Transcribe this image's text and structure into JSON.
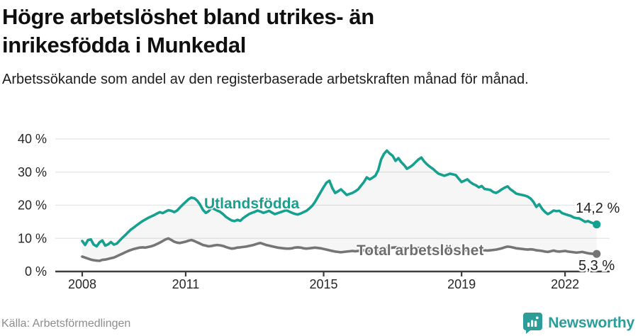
{
  "header": {
    "title": "Högre arbetslöshet bland utrikes- än inrikesfödda i Munkedal",
    "subtitle": "Arbetssökande som andel av den registerbaserade arbetskraften månad för månad."
  },
  "footer": {
    "source": "Källa: Arbetsförmedlingen",
    "brand": "Newsworthy"
  },
  "colors": {
    "accent": "#16a08f",
    "gray_series": "#757575",
    "gray_label": "#6e6e6e",
    "grid": "#e4e4e4",
    "axis": "#3d3d3d",
    "value_label": "#1f1f1f",
    "tick_text": "#262626",
    "fill_between": "rgba(90,90,90,0.055)",
    "brand_teal": "#2c9d98"
  },
  "chart_data": {
    "type": "line",
    "title": "Högre arbetslöshet bland utrikes- än inrikesfödda i Munkedal",
    "subtitle": "Arbetssökande som andel av den registerbaserade arbetskraften månad för månad.",
    "x_unit": "month",
    "x_range": [
      "2008-01",
      "2022-12"
    ],
    "xticks": [
      "2008",
      "2011",
      "2015",
      "2019",
      "2022"
    ],
    "xtick_years": [
      2008,
      2011,
      2015,
      2019,
      2022
    ],
    "yticks": [
      "0 %",
      "10 %",
      "20 %",
      "30 %",
      "40 %"
    ],
    "ytick_values": [
      0,
      10,
      20,
      30,
      40
    ],
    "ylim": [
      0,
      40
    ],
    "grid": true,
    "legend": "inline",
    "series": [
      {
        "name": "Utlandsfödda",
        "end_label": "14,2 %",
        "end_value": 14.2,
        "values": [
          9.2,
          8.0,
          9.5,
          9.7,
          8.1,
          7.6,
          8.8,
          9.4,
          7.8,
          8.2,
          8.9,
          8.1,
          8.4,
          9.3,
          10.2,
          11.0,
          11.9,
          12.7,
          13.3,
          14.0,
          14.6,
          15.2,
          15.7,
          16.2,
          16.6,
          17.0,
          17.5,
          17.9,
          17.6,
          18.1,
          18.5,
          18.3,
          17.9,
          18.4,
          19.3,
          20.2,
          21.0,
          21.8,
          22.3,
          22.1,
          21.4,
          20.2,
          18.6,
          17.7,
          18.2,
          19.3,
          18.8,
          18.4,
          18.0,
          17.3,
          16.5,
          15.9,
          15.4,
          15.2,
          15.6,
          15.3,
          16.1,
          16.7,
          17.3,
          17.7,
          18.0,
          18.4,
          18.1,
          17.7,
          18.0,
          18.3,
          17.8,
          17.3,
          17.6,
          17.9,
          18.2,
          18.5,
          18.1,
          17.7,
          17.4,
          17.2,
          17.5,
          17.9,
          18.3,
          19.0,
          19.8,
          21.0,
          22.5,
          24.0,
          25.5,
          26.8,
          27.4,
          25.2,
          23.7,
          24.2,
          24.8,
          24.0,
          23.1,
          23.4,
          23.7,
          24.2,
          24.8,
          25.9,
          27.0,
          28.4,
          27.8,
          28.3,
          28.9,
          30.6,
          33.8,
          35.5,
          36.5,
          35.6,
          34.9,
          33.4,
          34.2,
          33.0,
          32.1,
          31.0,
          31.5,
          32.1,
          33.0,
          33.8,
          34.4,
          33.2,
          32.3,
          31.6,
          31.0,
          30.2,
          29.5,
          29.2,
          28.9,
          29.2,
          29.5,
          29.3,
          29.1,
          28.0,
          27.0,
          27.4,
          27.8,
          27.0,
          26.4,
          26.0,
          25.4,
          25.8,
          24.9,
          24.8,
          24.6,
          24.0,
          23.7,
          24.2,
          24.8,
          25.3,
          25.7,
          24.8,
          24.2,
          23.5,
          23.3,
          23.1,
          22.9,
          22.6,
          22.0,
          21.0,
          19.5,
          20.3,
          18.9,
          18.0,
          17.3,
          17.8,
          18.4,
          18.2,
          18.3,
          17.6,
          17.3,
          17.0,
          16.8,
          16.3,
          16.1,
          16.0,
          15.5,
          15.0,
          15.2,
          14.8,
          14.5,
          14.2
        ]
      },
      {
        "name": "Total arbetslöshet",
        "end_label": "5,3 %",
        "end_value": 5.3,
        "values": [
          4.5,
          4.2,
          3.9,
          3.6,
          3.4,
          3.3,
          3.2,
          3.5,
          3.6,
          3.8,
          4.0,
          4.2,
          4.6,
          5.0,
          5.4,
          5.8,
          6.2,
          6.5,
          6.8,
          7.0,
          7.2,
          7.3,
          7.2,
          7.4,
          7.6,
          7.9,
          8.3,
          8.7,
          9.2,
          9.7,
          10.0,
          9.5,
          9.0,
          8.7,
          8.6,
          8.8,
          9.0,
          9.3,
          9.5,
          9.2,
          8.8,
          8.4,
          8.0,
          7.8,
          7.6,
          7.7,
          7.9,
          8.0,
          7.9,
          7.7,
          7.4,
          7.1,
          6.9,
          7.0,
          7.2,
          7.3,
          7.4,
          7.5,
          7.7,
          7.9,
          8.1,
          8.4,
          8.6,
          8.3,
          8.0,
          7.8,
          7.6,
          7.4,
          7.2,
          7.1,
          7.0,
          6.9,
          6.9,
          7.0,
          7.2,
          7.3,
          7.2,
          7.0,
          6.9,
          7.0,
          7.1,
          7.2,
          7.1,
          7.0,
          6.8,
          6.6,
          6.4,
          6.2,
          6.0,
          5.9,
          5.8,
          5.9,
          6.0,
          6.1,
          6.2,
          6.1,
          6.2,
          6.3,
          6.4,
          6.3,
          6.2,
          6.1,
          6.2,
          6.4,
          6.6,
          6.8,
          7.0,
          7.1,
          7.2,
          7.3,
          7.2,
          7.1,
          7.0,
          6.9,
          6.8,
          6.9,
          7.0,
          7.1,
          7.0,
          6.9,
          6.8,
          6.7,
          6.6,
          6.5,
          6.4,
          6.3,
          6.2,
          6.3,
          6.4,
          6.3,
          6.2,
          6.1,
          6.2,
          6.3,
          6.4,
          6.3,
          6.2,
          6.3,
          6.4,
          6.5,
          6.4,
          6.3,
          6.4,
          6.5,
          6.6,
          6.8,
          7.0,
          7.3,
          7.5,
          7.4,
          7.2,
          7.0,
          6.9,
          6.8,
          6.7,
          6.6,
          6.7,
          6.6,
          6.4,
          6.3,
          6.2,
          6.0,
          5.9,
          6.1,
          6.3,
          6.1,
          6.0,
          6.1,
          6.2,
          6.0,
          5.9,
          5.8,
          5.7,
          5.8,
          5.9,
          5.7,
          5.5,
          5.4,
          5.3,
          5.3
        ]
      }
    ]
  }
}
